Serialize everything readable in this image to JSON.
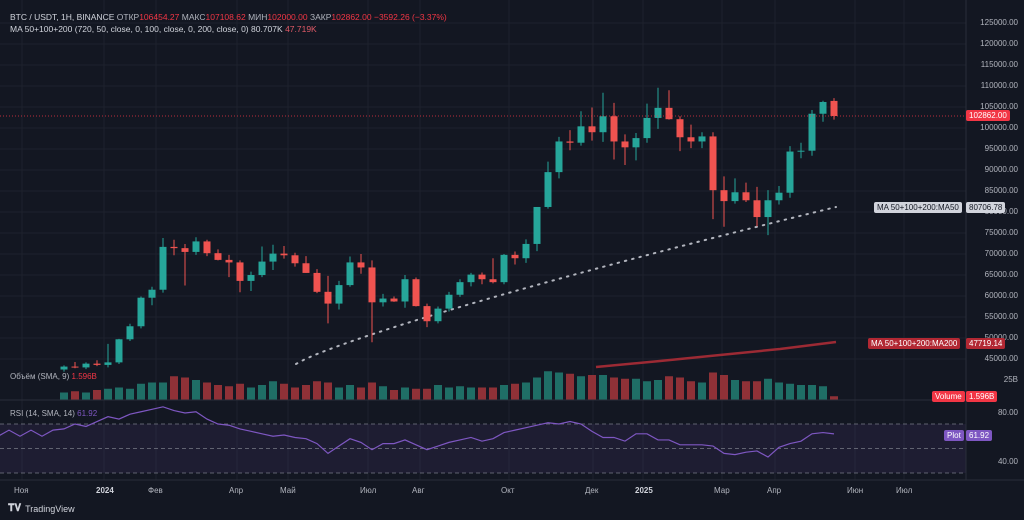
{
  "legend": {
    "symbol": "BTC / USDT, 1H, BINANCE",
    "open_label": "ОТКР",
    "open": "106454.27",
    "high_label": "МАКС",
    "high": "107108.62",
    "low_label": "МИН",
    "low": "102000.00",
    "close_label": "ЗАКР",
    "close": "102862.00",
    "change": "−3592.26 (−3.37%)",
    "ma_name": "MA 50+100+200 (720, 50, close, 0, 100, close, 0, 200, close, 0)",
    "ma_val1": "80.707K",
    "ma_val2": "47.719K"
  },
  "price_axis": [
    "125000.00",
    "120000.00",
    "115000.00",
    "110000.00",
    "105000.00",
    "100000.00",
    "95000.00",
    "90000.00",
    "85000.00",
    "80000.00",
    "75000.00",
    "70000.00",
    "65000.00",
    "60000.00",
    "55000.00",
    "50000.00",
    "45000.00"
  ],
  "badges": {
    "last_price": "102862.00",
    "ma50_label": "MA 50+100+200:MA50",
    "ma50_value": "80706.78",
    "ma200_label": "MA 50+100+200:MA200",
    "ma200_value": "47719.14",
    "volume_label": "Volume",
    "volume_value": "1.596B",
    "rsi_plot_label": "Plot",
    "rsi_plot_value": "61.92"
  },
  "volume": {
    "title": "Объём (SMA, 9)",
    "value": "1.596B",
    "axis_top": "25B"
  },
  "rsi": {
    "title": "RSI (14, SMA, 14)",
    "value": "61.92",
    "axis_80": "80.00",
    "axis_40": "40.00"
  },
  "time_axis": [
    "Ноя",
    "2024",
    "Фев",
    "Апр",
    "Май",
    "Июл",
    "Авг",
    "Окт",
    "Дек",
    "2025",
    "Мар",
    "Апр",
    "Июн",
    "Июл"
  ],
  "branding": "TradingView",
  "colors": {
    "up": "#26a69a",
    "down": "#ef5350",
    "bg": "#131722",
    "ma50": "#b2b5be",
    "ma200": "#9c2a34",
    "rsi": "#7e57c2"
  },
  "chart_data": {
    "type": "candlestick",
    "candles": [
      [
        42500,
        43500,
        42000,
        43200
      ],
      [
        43200,
        44300,
        42800,
        43000
      ],
      [
        43000,
        44200,
        42600,
        43900
      ],
      [
        43900,
        44700,
        43300,
        43600
      ],
      [
        43600,
        48600,
        43000,
        44200
      ],
      [
        44200,
        49800,
        43800,
        49700
      ],
      [
        49700,
        53400,
        49300,
        52800
      ],
      [
        52800,
        59900,
        52300,
        59600
      ],
      [
        59600,
        62200,
        57800,
        61500
      ],
      [
        61500,
        73800,
        60800,
        71700
      ],
      [
        71700,
        73400,
        69700,
        71400
      ],
      [
        71400,
        72400,
        62500,
        70500
      ],
      [
        70500,
        74000,
        69800,
        73000
      ],
      [
        73000,
        73400,
        69500,
        70200
      ],
      [
        70200,
        71100,
        68500,
        68600
      ],
      [
        68600,
        69800,
        64500,
        68000
      ],
      [
        68000,
        68500,
        60900,
        63600
      ],
      [
        63600,
        65800,
        61200,
        65000
      ],
      [
        65000,
        71800,
        64500,
        68200
      ],
      [
        68200,
        72200,
        66200,
        70100
      ],
      [
        70100,
        71900,
        68900,
        69700
      ],
      [
        69700,
        70300,
        67000,
        67800
      ],
      [
        67800,
        69500,
        65500,
        65500
      ],
      [
        65500,
        66400,
        60700,
        61000
      ],
      [
        61000,
        64800,
        53500,
        58200
      ],
      [
        58200,
        63600,
        56800,
        62600
      ],
      [
        62600,
        69400,
        62200,
        68000
      ],
      [
        68000,
        70000,
        65300,
        66800
      ],
      [
        66800,
        68500,
        49000,
        58500
      ],
      [
        58500,
        60500,
        57500,
        59400
      ],
      [
        59400,
        59900,
        58600,
        58700
      ],
      [
        58700,
        65000,
        57200,
        64000
      ],
      [
        64000,
        64400,
        57500,
        57600
      ],
      [
        57600,
        58200,
        52600,
        54000
      ],
      [
        54000,
        57500,
        53500,
        57000
      ],
      [
        57000,
        61000,
        56300,
        60300
      ],
      [
        60300,
        64000,
        59800,
        63300
      ],
      [
        63300,
        65500,
        62300,
        65100
      ],
      [
        65100,
        65600,
        62800,
        64000
      ],
      [
        64000,
        69000,
        63000,
        63300
      ],
      [
        63300,
        70000,
        62800,
        69800
      ],
      [
        69800,
        70600,
        67500,
        69000
      ],
      [
        69000,
        73500,
        67900,
        72400
      ],
      [
        72400,
        81000,
        70700,
        81200
      ],
      [
        81200,
        92000,
        80800,
        89500
      ],
      [
        89500,
        97900,
        88000,
        96800
      ],
      [
        96800,
        99500,
        94700,
        96500
      ],
      [
        96500,
        104000,
        95800,
        100400
      ],
      [
        100400,
        104900,
        97000,
        99000
      ],
      [
        99000,
        108400,
        96700,
        102800
      ],
      [
        102800,
        106000,
        92500,
        96800
      ],
      [
        96800,
        98500,
        91200,
        95400
      ],
      [
        95400,
        98800,
        92300,
        97600
      ],
      [
        97600,
        105800,
        96500,
        102400
      ],
      [
        102400,
        109600,
        99800,
        104800
      ],
      [
        104800,
        109000,
        102000,
        102100
      ],
      [
        102100,
        102800,
        94500,
        97800
      ],
      [
        97800,
        100800,
        95200,
        96800
      ],
      [
        96800,
        99000,
        95200,
        98000
      ],
      [
        98000,
        99000,
        78300,
        85200
      ],
      [
        85200,
        88500,
        76500,
        82600
      ],
      [
        82600,
        88000,
        82000,
        84700
      ],
      [
        84700,
        87000,
        82400,
        82800
      ],
      [
        82800,
        86000,
        76600,
        78800
      ],
      [
        78800,
        85200,
        74500,
        82800
      ],
      [
        82800,
        86200,
        81800,
        84600
      ],
      [
        84600,
        95700,
        83400,
        94400
      ],
      [
        94400,
        96500,
        92800,
        94600
      ],
      [
        94600,
        104300,
        93400,
        103400
      ],
      [
        103400,
        106500,
        101500,
        106200
      ],
      [
        106454,
        107108,
        102000,
        102862
      ]
    ],
    "ma50_start": 45000,
    "ma50_end": 80707,
    "ma200_start": 20000,
    "ma200_end": 47719,
    "volume": [
      6,
      7,
      6,
      8,
      9,
      10,
      9,
      13,
      14,
      14,
      19,
      18,
      16,
      14,
      12,
      11,
      13,
      10,
      12,
      15,
      13,
      10,
      12,
      15,
      14,
      10,
      12,
      10,
      14,
      11,
      8,
      10,
      9,
      9,
      12,
      10,
      11,
      10,
      10,
      10,
      12,
      13,
      14,
      18,
      23,
      22,
      21,
      19,
      20,
      20,
      18,
      17,
      17,
      15,
      16,
      19,
      18,
      15,
      14,
      22,
      20,
      16,
      15,
      15,
      17,
      14,
      13,
      12,
      12,
      11,
      3
    ],
    "rsi": [
      66,
      70,
      68,
      72,
      76,
      74,
      78,
      80,
      82,
      84,
      81,
      79,
      80,
      74,
      70,
      69,
      66,
      64,
      62,
      60,
      61,
      59,
      58,
      54,
      46,
      52,
      58,
      55,
      49,
      54,
      54,
      57,
      53,
      49,
      52,
      55,
      57,
      59,
      56,
      58,
      63,
      65,
      67,
      69,
      71,
      70,
      72,
      70,
      64,
      59,
      59,
      56,
      62,
      62,
      57,
      57,
      53,
      53,
      53,
      52,
      46,
      45,
      47,
      48,
      43,
      51,
      54,
      56,
      62,
      63,
      61.92
    ]
  }
}
